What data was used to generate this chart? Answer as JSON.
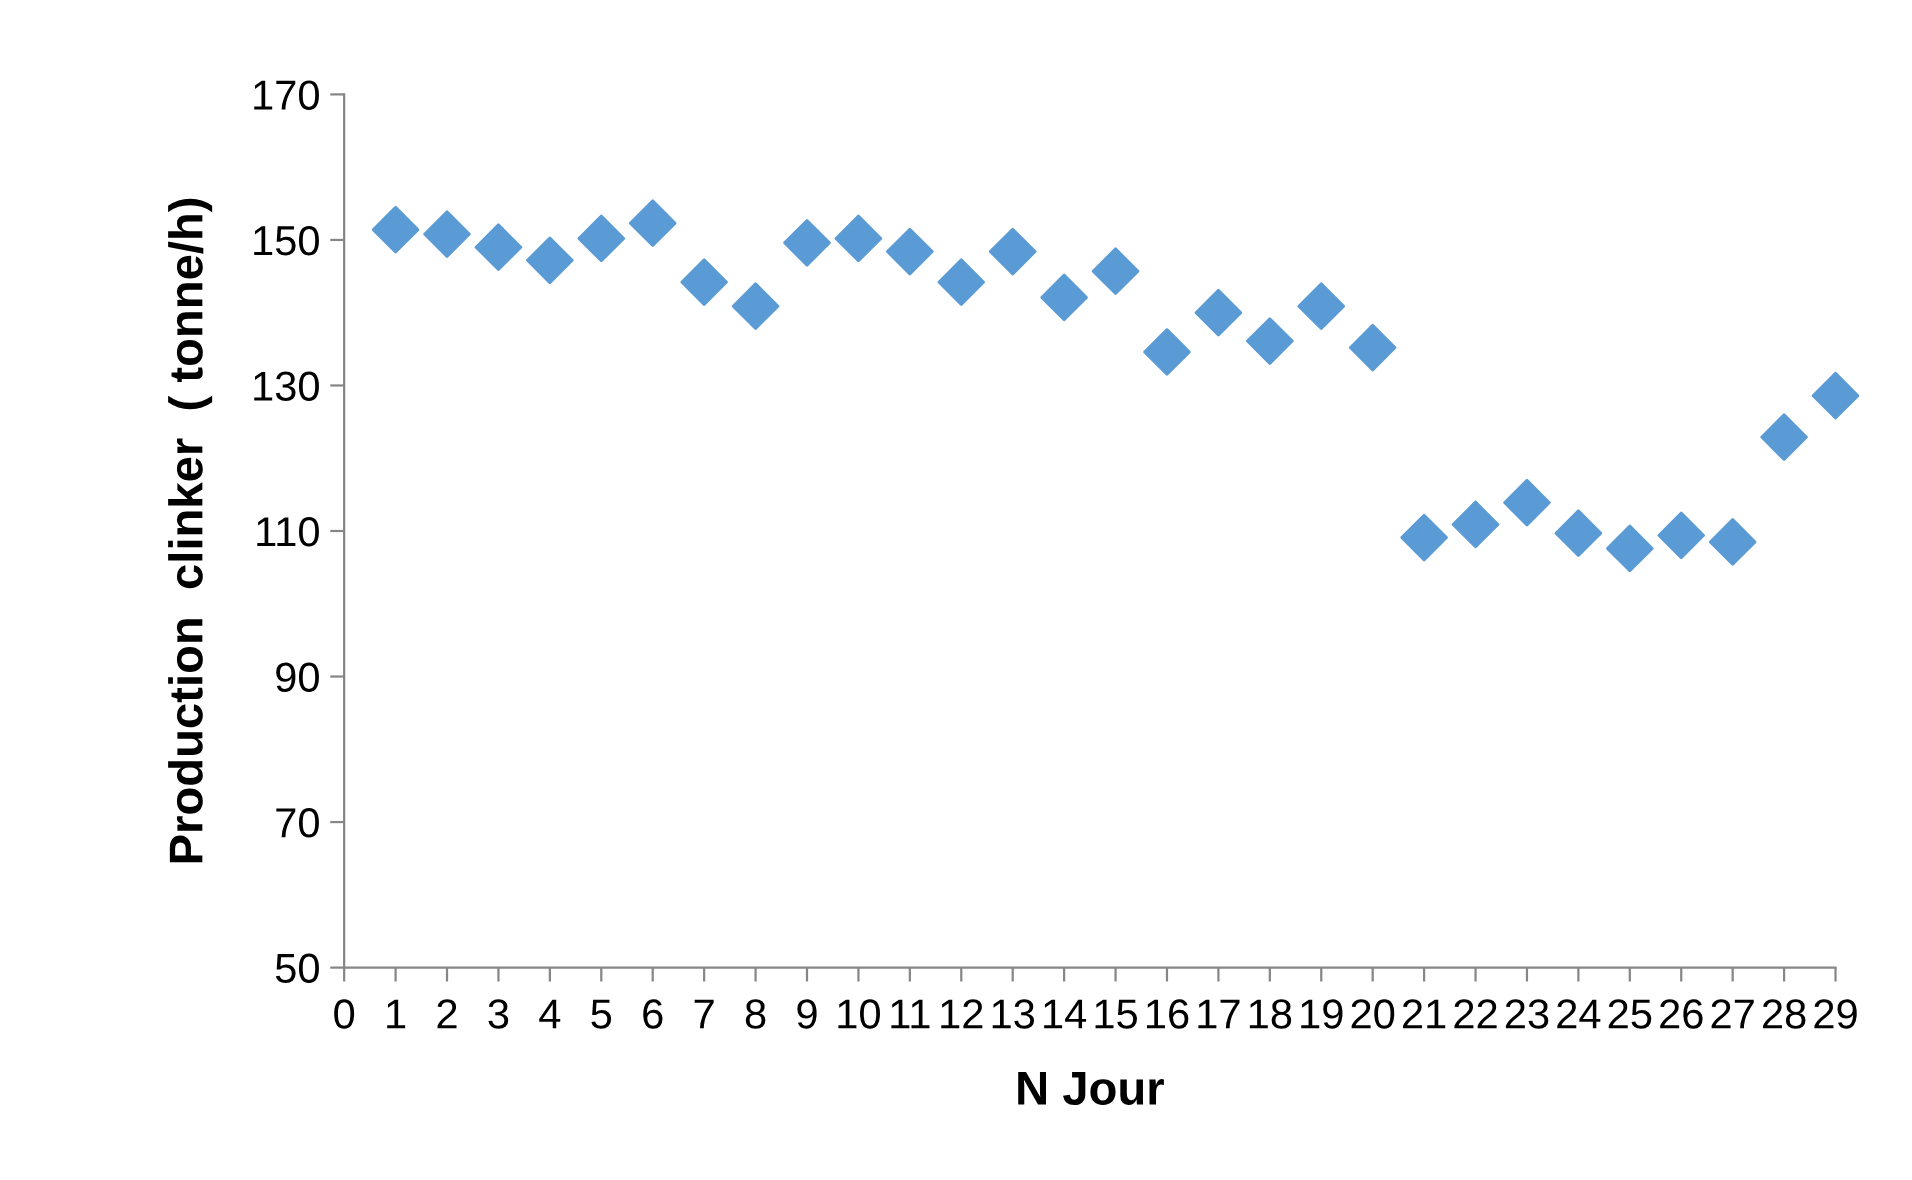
{
  "chart_data": {
    "type": "scatter",
    "xlabel": "N Jour",
    "ylabel": "Production  clinker  ( tonne/h)",
    "x": [
      1,
      2,
      3,
      4,
      5,
      6,
      7,
      8,
      9,
      10,
      11,
      12,
      13,
      14,
      15,
      16,
      17,
      18,
      19,
      20,
      21,
      22,
      23,
      24,
      25,
      26,
      27,
      28,
      29
    ],
    "series": [
      {
        "color": "#5b9bd5",
        "values": [
          151.4,
          150.8,
          149,
          147.2,
          150.2,
          152.3,
          144.2,
          140.9,
          149.6,
          150.2,
          148.4,
          144.2,
          148.4,
          142.1,
          145.7,
          134.6,
          140,
          136.1,
          140.9,
          135.2,
          109.1,
          110.9,
          113.9,
          109.7,
          107.6,
          109.4,
          108.5,
          122.9,
          128.6
        ]
      }
    ],
    "xlim": [
      0,
      29
    ],
    "xticks": [
      0,
      1,
      2,
      3,
      4,
      5,
      6,
      7,
      8,
      9,
      10,
      11,
      12,
      13,
      14,
      15,
      16,
      17,
      18,
      19,
      20,
      21,
      22,
      23,
      24,
      25,
      26,
      27,
      28,
      29
    ],
    "ylim": [
      50,
      170
    ],
    "yticks": [
      50,
      70,
      90,
      110,
      130,
      150,
      170
    ],
    "marker": "diamond",
    "grid": false,
    "legend": false
  }
}
